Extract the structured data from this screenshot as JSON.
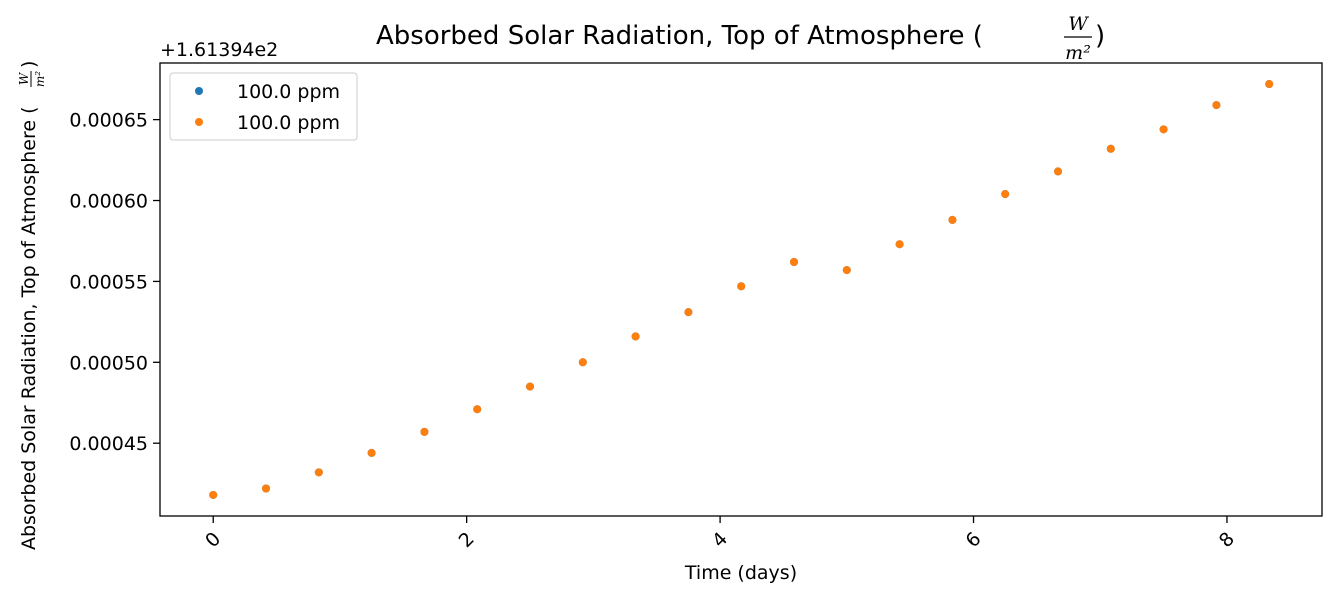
{
  "chart_data": {
    "type": "scatter",
    "title": "Absorbed Solar Radiation, Top of Atmosphere (",
    "title_close": ")",
    "unit_numerator": "W",
    "unit_denominator": "m²",
    "xlabel": "Time (days)",
    "ylabel": "Absorbed Solar Radiation, Top of Atmosphere (",
    "ylabel_close": ")",
    "y_offset_label": "+1.61394e2",
    "xlim": [
      -0.42,
      8.75
    ],
    "ylim": [
      0.000405,
      0.000685
    ],
    "x_ticks": [
      0,
      2,
      4,
      6,
      8
    ],
    "x_tick_labels": [
      "0",
      "2",
      "4",
      "6",
      "8"
    ],
    "y_ticks": [
      0.00045,
      0.0005,
      0.00055,
      0.0006,
      0.00065
    ],
    "y_tick_labels": [
      "0.00045",
      "0.00050",
      "0.00055",
      "0.00060",
      "0.00065"
    ],
    "legend_position": "top-left",
    "grid": false,
    "series": [
      {
        "name": "100.0 ppm",
        "color": "#1f77b4",
        "x": [
          0,
          0.4167,
          0.8333,
          1.25,
          1.6667,
          2.0833,
          2.5,
          2.9167,
          3.3333,
          3.75,
          4.1667,
          4.5833,
          5.0,
          5.4167,
          5.8333,
          6.25,
          6.6667,
          7.0833,
          7.5,
          7.9167,
          8.3333
        ],
        "y": [
          0.000418,
          0.000422,
          0.000432,
          0.000444,
          0.000457,
          0.000471,
          0.000485,
          0.0005,
          0.000516,
          0.000531,
          0.000547,
          0.000562,
          0.000557,
          0.000573,
          0.000588,
          0.000604,
          0.000618,
          0.000632,
          0.000644,
          0.000659,
          0.000672
        ]
      },
      {
        "name": "100.0 ppm",
        "color": "#ff7f0e",
        "x": [
          0,
          0.4167,
          0.8333,
          1.25,
          1.6667,
          2.0833,
          2.5,
          2.9167,
          3.3333,
          3.75,
          4.1667,
          4.5833,
          5.0,
          5.4167,
          5.8333,
          6.25,
          6.6667,
          7.0833,
          7.5,
          7.9167,
          8.3333
        ],
        "y": [
          0.000418,
          0.000422,
          0.000432,
          0.000444,
          0.000457,
          0.000471,
          0.000485,
          0.0005,
          0.000516,
          0.000531,
          0.000547,
          0.000562,
          0.000557,
          0.000573,
          0.000588,
          0.000604,
          0.000618,
          0.000632,
          0.000644,
          0.000659,
          0.000672
        ]
      }
    ]
  }
}
